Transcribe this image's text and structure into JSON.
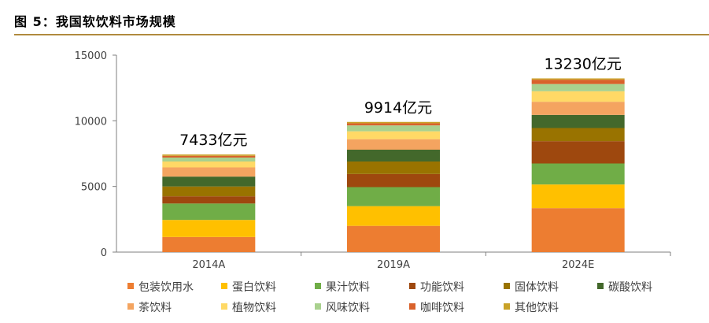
{
  "header": {
    "title": "图 5：我国软饮料市场规模"
  },
  "chart_data": {
    "type": "bar",
    "stacked": true,
    "categories": [
      "2014A",
      "2019A",
      "2024E"
    ],
    "totals_labels": [
      "7433亿元",
      "9914亿元",
      "13230亿元"
    ],
    "ylim": [
      0,
      15000
    ],
    "yticks": [
      0,
      5000,
      10000,
      15000
    ],
    "grid": false,
    "legend_position": "bottom",
    "series": [
      {
        "name": "包装饮用水",
        "color": "#ed7d31",
        "values": [
          1150,
          2000,
          3350
        ]
      },
      {
        "name": "蛋白饮料",
        "color": "#ffc000",
        "values": [
          1300,
          1500,
          1800
        ]
      },
      {
        "name": "果汁饮料",
        "color": "#70ad47",
        "values": [
          1250,
          1450,
          1600
        ]
      },
      {
        "name": "功能饮料",
        "color": "#9e480e",
        "values": [
          550,
          1000,
          1700
        ]
      },
      {
        "name": "固体饮料",
        "color": "#997300",
        "values": [
          750,
          950,
          1000
        ]
      },
      {
        "name": "碳酸饮料",
        "color": "#43682b",
        "values": [
          750,
          900,
          1000
        ]
      },
      {
        "name": "茶饮料",
        "color": "#f4a460",
        "values": [
          700,
          800,
          1000
        ]
      },
      {
        "name": "植物饮料",
        "color": "#ffd966",
        "values": [
          450,
          600,
          800
        ]
      },
      {
        "name": "风味饮料",
        "color": "#a9d18e",
        "values": [
          300,
          450,
          550
        ]
      },
      {
        "name": "咖啡饮料",
        "color": "#d9622b",
        "values": [
          133,
          164,
          330
        ]
      },
      {
        "name": "其他饮料",
        "color": "#c9a227",
        "values": [
          100,
          100,
          100
        ]
      }
    ]
  }
}
